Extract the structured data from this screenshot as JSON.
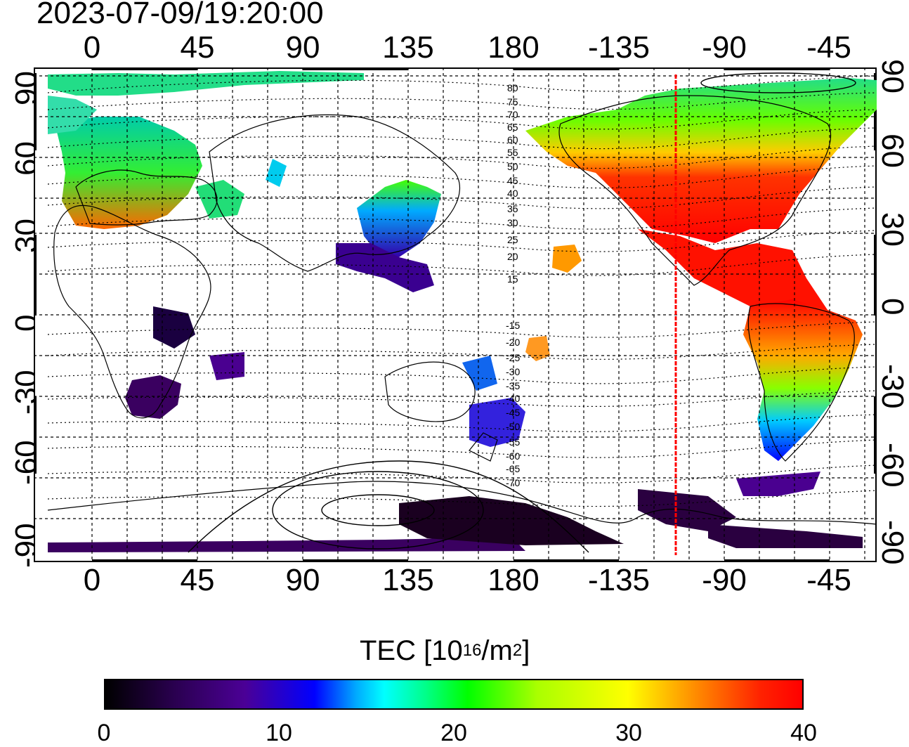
{
  "title": "2023-07-09/19:20:00",
  "lon_ticks": [
    "0",
    "45",
    "90",
    "135",
    "180",
    "-135",
    "-90",
    "-45"
  ],
  "lat_ticks": [
    "90",
    "60",
    "30",
    "0",
    "-30",
    "-60",
    "-90"
  ],
  "contour_labels_north": [
    "80",
    "75",
    "70",
    "65",
    "60",
    "55",
    "50",
    "45",
    "40",
    "35",
    "30",
    "25",
    "20",
    "15"
  ],
  "contour_labels_south": [
    "-15",
    "-20",
    "-25",
    "-30",
    "-35",
    "-40",
    "-45",
    "-50",
    "-55",
    "-60",
    "-65",
    "-70"
  ],
  "colorbar": {
    "title_main": "TEC  [10",
    "title_exp1": "16",
    "title_mid": "/m",
    "title_exp2": "2",
    "title_end": "]",
    "ticks": [
      "0",
      "10",
      "20",
      "30",
      "40"
    ],
    "min": 0,
    "max": 40
  },
  "terminator_longitude": -110,
  "colors": {
    "terminator": "#ff0000",
    "grid": "#000000"
  }
}
